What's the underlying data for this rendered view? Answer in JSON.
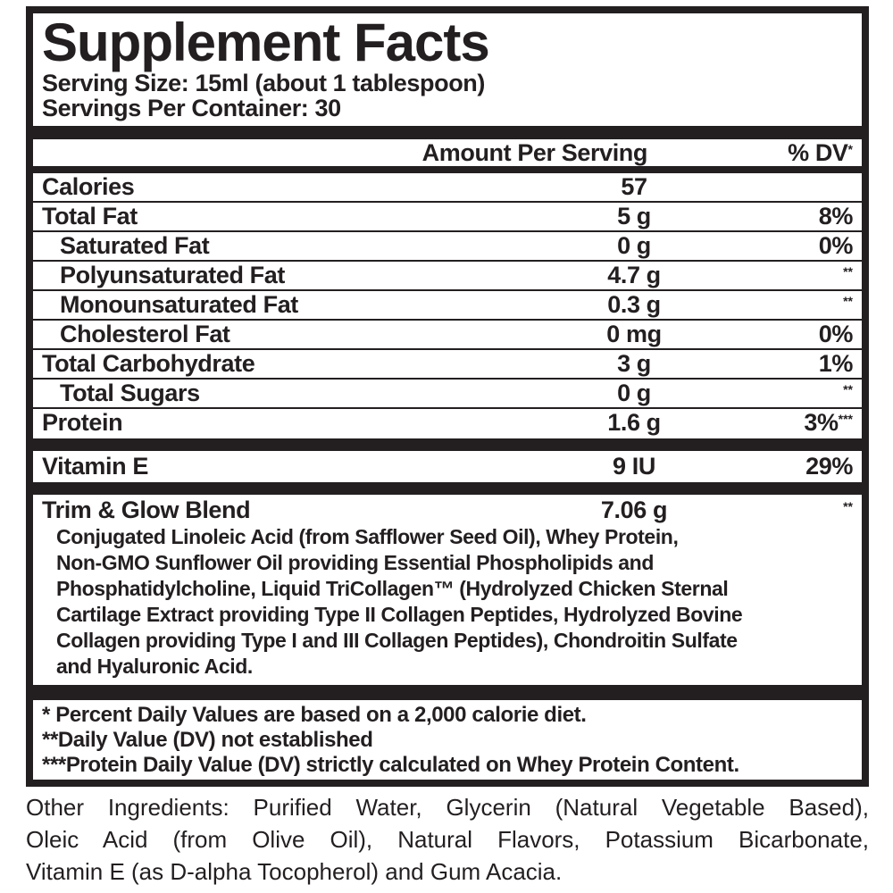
{
  "label": {
    "title": "Supplement Facts",
    "serving_size": "Serving Size: 15ml (about 1 tablespoon)",
    "servings_per_container": "Servings Per Container: 30",
    "column_headers": {
      "amount": "Amount Per Serving",
      "dv": "% DV",
      "dv_sup": "*"
    },
    "rows": [
      {
        "name": "Calories",
        "amount": "57",
        "dv": "",
        "dv_sup": ""
      },
      {
        "name": "Total Fat",
        "amount": "5 g",
        "dv": "8%",
        "dv_sup": ""
      },
      {
        "name": "Saturated Fat",
        "amount": "0 g",
        "dv": "0%",
        "dv_sup": ""
      },
      {
        "name": "Polyunsaturated Fat",
        "amount": "4.7 g",
        "dv": "",
        "dv_sup": "**"
      },
      {
        "name": "Monounsaturated Fat",
        "amount": "0.3 g",
        "dv": "",
        "dv_sup": "**"
      },
      {
        "name": "Cholesterol Fat",
        "amount": "0 mg",
        "dv": "0%",
        "dv_sup": ""
      },
      {
        "name": "Total Carbohydrate",
        "amount": "3 g",
        "dv": "1%",
        "dv_sup": ""
      },
      {
        "name": "Total Sugars",
        "amount": "0 g",
        "dv": "",
        "dv_sup": "**"
      },
      {
        "name": "Protein",
        "amount": "1.6 g",
        "dv": "3%",
        "dv_sup": "***"
      }
    ],
    "vitamin_row": {
      "name": "Vitamin E",
      "amount": "9 IU",
      "dv": "29%",
      "dv_sup": ""
    },
    "blend_row": {
      "name": "Trim & Glow Blend",
      "amount": "7.06 g",
      "dv": "",
      "dv_sup": "**"
    },
    "blend_description_lines": [
      "Conjugated Linoleic Acid (from Safflower Seed Oil), Whey Protein,",
      "Non-GMO Sunflower Oil providing Essential Phospholipids and",
      "Phosphatidylcholine, Liquid TriCollagen™ (Hydrolyzed Chicken Sternal",
      "Cartilage Extract providing Type II Collagen Peptides, Hydrolyzed Bovine",
      "Collagen providing Type I and III Collagen Peptides), Chondroitin Sulfate",
      "and Hyaluronic Acid."
    ],
    "footnotes": [
      "* Percent Daily Values are based on a 2,000 calorie diet.",
      "**Daily Value (DV) not established",
      "***Protein Daily Value (DV) strictly calculated on Whey Protein Content."
    ],
    "colors": {
      "ink": "#231f20",
      "background": "#ffffff"
    }
  },
  "other_ingredients": {
    "lines": [
      "Other Ingredients: Purified Water, Glycerin (Natural Vegetable Based),",
      "Oleic Acid (from Olive Oil), Natural Flavors, Potassium Bicarbonate,",
      "Vitamin E (as D-alpha Tocopherol) and Gum Acacia."
    ]
  }
}
